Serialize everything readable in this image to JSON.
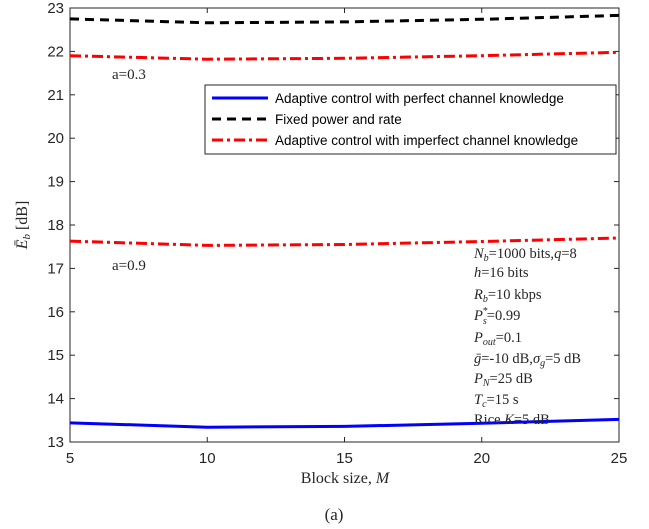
{
  "chart_data": {
    "type": "line",
    "title": "",
    "caption": "(a)",
    "xlabel": "Block size, M",
    "ylabel": "Ē_b [dB]",
    "xlim": [
      5,
      25
    ],
    "ylim": [
      13,
      23
    ],
    "xticks": [
      5,
      10,
      15,
      20,
      25
    ],
    "yticks": [
      13,
      14,
      15,
      16,
      17,
      18,
      19,
      20,
      21,
      22,
      23
    ],
    "grid": false,
    "legend_position": "top-right",
    "x": [
      5,
      10,
      15,
      20,
      25
    ],
    "series": [
      {
        "name": "Adaptive control with perfect channel knowledge",
        "color": "#0000ff",
        "dash": "solid",
        "values": [
          13.44,
          13.34,
          13.36,
          13.43,
          13.52
        ]
      },
      {
        "name": "Fixed power and rate",
        "color": "#000000",
        "dash": "dashed",
        "values": [
          22.75,
          22.66,
          22.68,
          22.74,
          22.83
        ]
      },
      {
        "name": "Adaptive control with imperfect channel knowledge",
        "color": "#ff0000",
        "dash": "dashdot",
        "values": [
          21.9,
          21.82,
          21.84,
          21.9,
          21.98
        ]
      },
      {
        "name": "Adaptive control with imperfect channel knowledge",
        "color": "#ff0000",
        "dash": "dashdot",
        "values": [
          17.63,
          17.53,
          17.55,
          17.62,
          17.7
        ]
      }
    ],
    "annotations": {
      "a03": "a=0.3",
      "a09": "a=0.9"
    },
    "params": [
      "N_b=1000 bits,q=8",
      "h=16 bits",
      "R_b=10 kbps",
      "P_s*=0.99",
      "P_out=0.1",
      "ḡ=-10 dB,σ_g=5 dB",
      "P_N=25 dB",
      "T_c=15 s",
      "Rice K=5 dB"
    ]
  }
}
